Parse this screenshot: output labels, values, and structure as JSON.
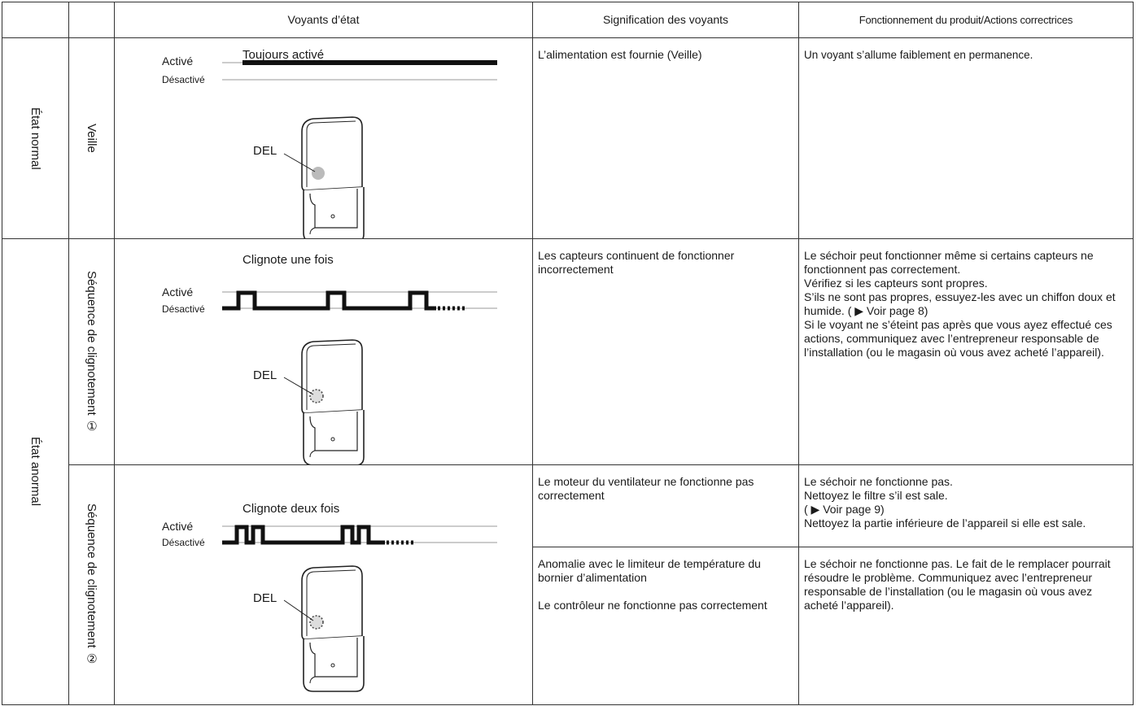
{
  "table": {
    "headers": [
      "Voyants d’état",
      "Signification des voyants",
      "Fonctionnement du produit/Actions correctrices"
    ],
    "groups": [
      {
        "label": "État normal",
        "sequences": [
          {
            "label": "Veille",
            "indicator": {
              "caption": "Toujours activé",
              "on": "Activé",
              "off": "Désactivé",
              "led": "DEL"
            },
            "entries": [
              {
                "meaning": [
                  "L’alimentation est fournie (Veille)"
                ],
                "action": [
                  "Un voyant s’allume faiblement en permanence."
                ]
              }
            ]
          }
        ]
      },
      {
        "label": "État anormal",
        "sequences": [
          {
            "label": "Séquence de clignotement ①",
            "indicator": {
              "caption": "Clignote une fois",
              "on": "Activé",
              "off": "Désactivé",
              "led": "DEL"
            },
            "entries": [
              {
                "meaning": [
                  "Les capteurs continuent de fonctionner incorrectement"
                ],
                "action": [
                  "Le séchoir peut fonctionner même si certains capteurs ne fonctionnent pas correctement.",
                  "Vérifiez si les capteurs sont propres.",
                  "S’ils ne sont pas propres, essuyez-les avec un chiffon doux et humide. ( ▶ Voir page 8)",
                  "Si le voyant ne s’éteint pas après que vous ayez effectué ces actions, communiquez avec l’entrepreneur responsable de l’installation (ou le magasin où vous avez acheté l’appareil)."
                ]
              }
            ]
          },
          {
            "label": "Séquence de clignotement ②",
            "indicator": {
              "caption": "Clignote deux fois",
              "on": "Activé",
              "off": "Désactivé",
              "led": "DEL"
            },
            "entries": [
              {
                "meaning": [
                  "Le moteur du ventilateur ne fonctionne pas correctement"
                ],
                "action": [
                  "Le séchoir ne fonctionne pas.",
                  "Nettoyez le filtre s’il est sale.",
                  "( ▶ Voir page 9)",
                  "Nettoyez la partie inférieure de l’appareil si elle est sale."
                ]
              },
              {
                "meaning": [
                  "Anomalie avec le limiteur de température du bornier d’alimentation",
                  "Le contrôleur ne fonctionne pas correctement"
                ],
                "action": [
                  "Le séchoir ne fonctionne pas. Le fait de le remplacer pourrait résoudre le problème. Communiquez avec l’entrepreneur responsable de l’installation (ou le magasin où vous avez acheté l’appareil)."
                ]
              }
            ]
          }
        ]
      }
    ]
  }
}
